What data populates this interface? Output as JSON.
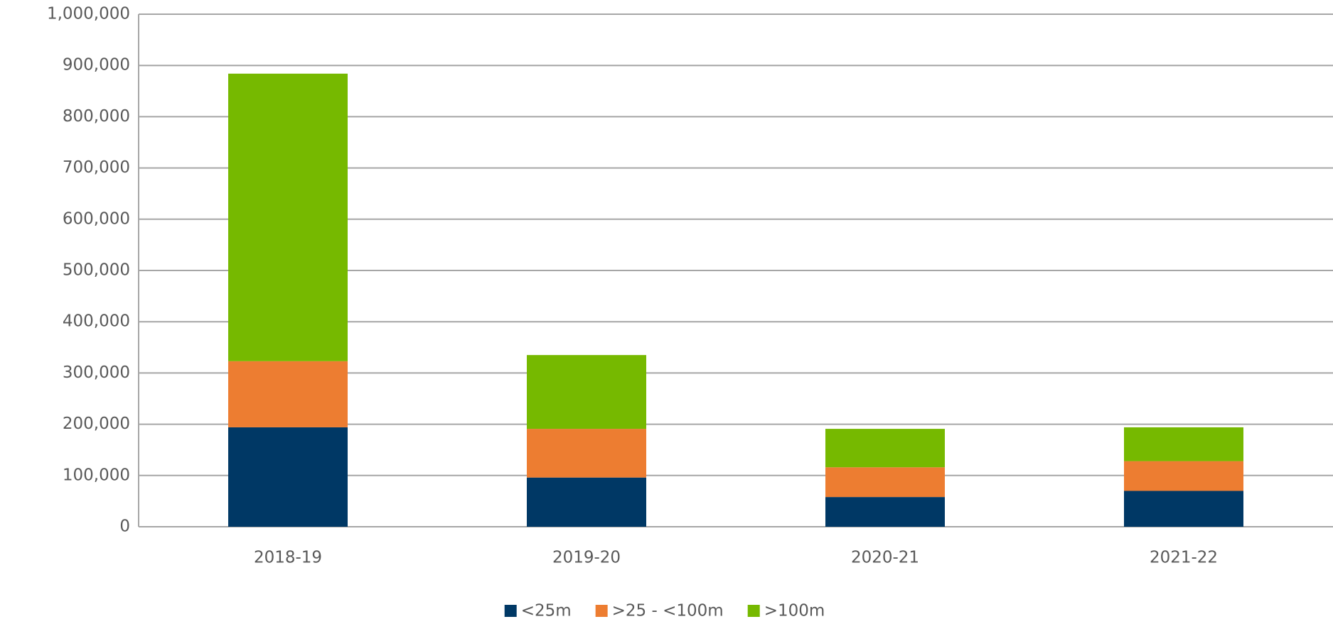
{
  "chart_data": {
    "type": "stacked_bar",
    "categories": [
      "2018-19",
      "2019-20",
      "2020-21",
      "2021-22"
    ],
    "series": [
      {
        "name": "<25m",
        "color": "#003865",
        "values": [
          194000,
          96000,
          58000,
          70000
        ]
      },
      {
        "name": ">25 - <100m",
        "color": "#ed7d31",
        "values": [
          129000,
          95000,
          58000,
          58000
        ]
      },
      {
        "name": ">100m",
        "color": "#76b900",
        "values": [
          561000,
          144000,
          75000,
          66000
        ]
      }
    ],
    "ylim": [
      0,
      1000000
    ],
    "yticks": [
      0,
      {
        "value": 100000,
        "label": "100,000"
      },
      {
        "value": 200000,
        "label": "200,000"
      },
      {
        "value": 300000,
        "label": "300,000"
      },
      {
        "value": 400000,
        "label": "400,000"
      },
      {
        "value": 500000,
        "label": "500,000"
      },
      {
        "value": 600000,
        "label": "600,000"
      },
      {
        "value": 700000,
        "label": "700,000"
      },
      {
        "value": 800000,
        "label": "800,000"
      },
      {
        "value": 900000,
        "label": "900,000"
      },
      {
        "value": 1000000,
        "label": "1,000,000"
      }
    ],
    "grid": true,
    "legend": "bottom"
  }
}
